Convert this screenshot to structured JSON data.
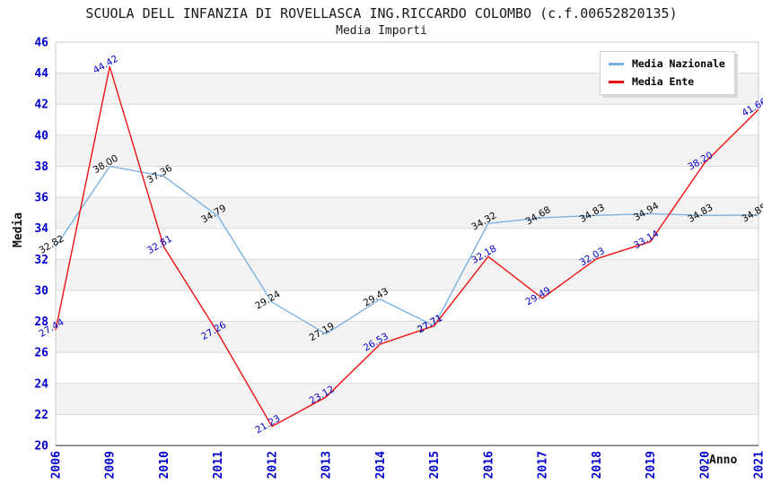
{
  "chart_data": {
    "type": "line",
    "title": "SCUOLA DELL INFANZIA DI ROVELLASCA ING.RICCARDO COLOMBO (c.f.00652820135)",
    "subtitle": "Media Importi",
    "xlabel": "Anno",
    "ylabel": "Media",
    "ylim": [
      20,
      46
    ],
    "ytick_step": 2,
    "grid": true,
    "legend_position": "top-right",
    "categories": [
      "2006",
      "2009",
      "2010",
      "2011",
      "2012",
      "2013",
      "2014",
      "2015",
      "2016",
      "2017",
      "2018",
      "2019",
      "2020",
      "2021"
    ],
    "series": [
      {
        "name": "Media Nazionale",
        "color": "#7ab1e2",
        "label_color": "#000000",
        "values": [
          32.82,
          38.0,
          37.36,
          34.79,
          29.24,
          27.19,
          29.43,
          27.71,
          34.32,
          34.68,
          34.83,
          34.94,
          34.83,
          34.85
        ]
      },
      {
        "name": "Media Ente",
        "color": "#ee1111",
        "label_color": "#0000cc",
        "values": [
          27.44,
          44.42,
          32.81,
          27.26,
          21.23,
          23.12,
          26.53,
          27.71,
          32.18,
          29.49,
          32.03,
          33.14,
          38.2,
          41.66
        ]
      }
    ],
    "colors": {
      "tick_label": "#0000cc",
      "grid_line": "#d9d9d9",
      "band_fill": "#f3f3f3",
      "plot_border": "#c9c9c9",
      "axis_line": "#555555"
    }
  }
}
